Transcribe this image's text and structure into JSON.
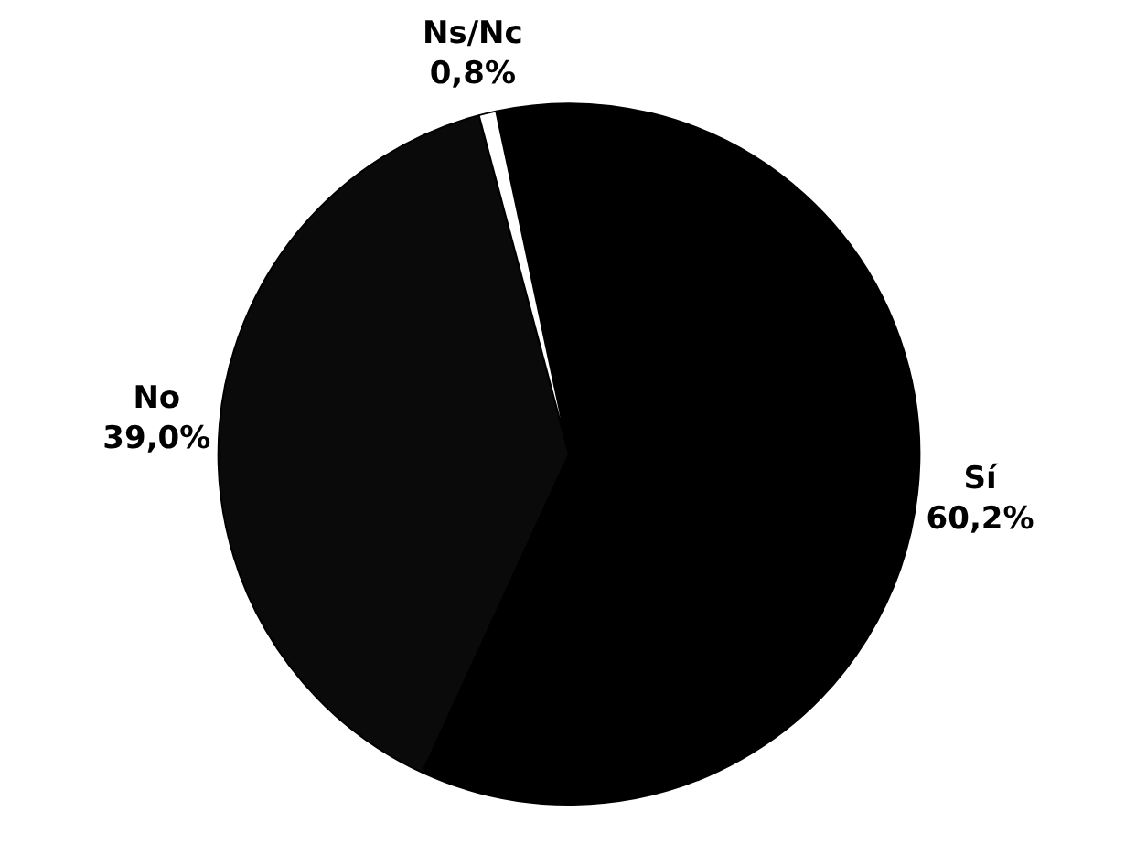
{
  "chart_data": {
    "type": "pie",
    "categories": [
      "Sí",
      "No",
      "Ns/Nc"
    ],
    "values": [
      60.2,
      39.0,
      0.8
    ],
    "colors": [
      "#000000",
      "#0a0a0a",
      "#ffffff"
    ],
    "value_labels": [
      "60,2%",
      "39,0%",
      "0,8%"
    ]
  }
}
